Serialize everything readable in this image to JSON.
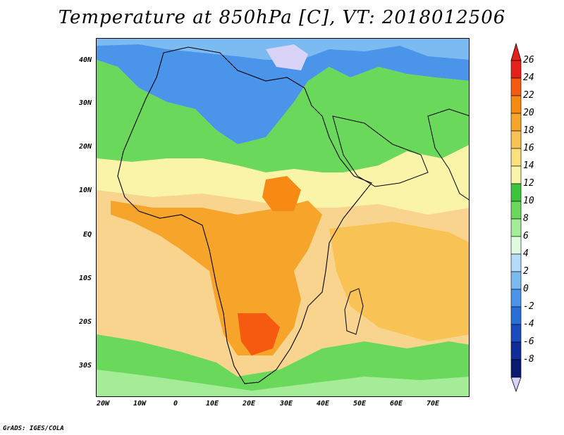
{
  "title": "Temperature at 850hPa [C], VT: 2018012506",
  "credit": "GrADS: IGES/COLA",
  "lat_ticks": [
    "40N",
    "30N",
    "20N",
    "10N",
    "EQ",
    "10S",
    "20S",
    "30S"
  ],
  "lon_ticks": [
    "20W",
    "10W",
    "0",
    "10E",
    "20E",
    "30E",
    "40E",
    "50E",
    "60E",
    "70E"
  ],
  "colorbar": {
    "levels": [
      "26",
      "24",
      "22",
      "20",
      "18",
      "16",
      "14",
      "12",
      "10",
      "8",
      "6",
      "4",
      "2",
      "0",
      "-2",
      "-4",
      "-6",
      "-8"
    ],
    "colors": [
      "#e8201a",
      "#f55a10",
      "#f78a12",
      "#f7a52a",
      "#f9c254",
      "#fbe07e",
      "#f9f4a8",
      "#3cc43c",
      "#6ad85a",
      "#a4ec98",
      "#e1fbe1",
      "#b4dcf8",
      "#7cbaf2",
      "#4a94ea",
      "#2a6ed8",
      "#1a4cc0",
      "#0f2c98",
      "#0a1a70"
    ],
    "overflow_low_color": "#d9d4f7",
    "overflow_high_color": "#e8201a"
  }
}
